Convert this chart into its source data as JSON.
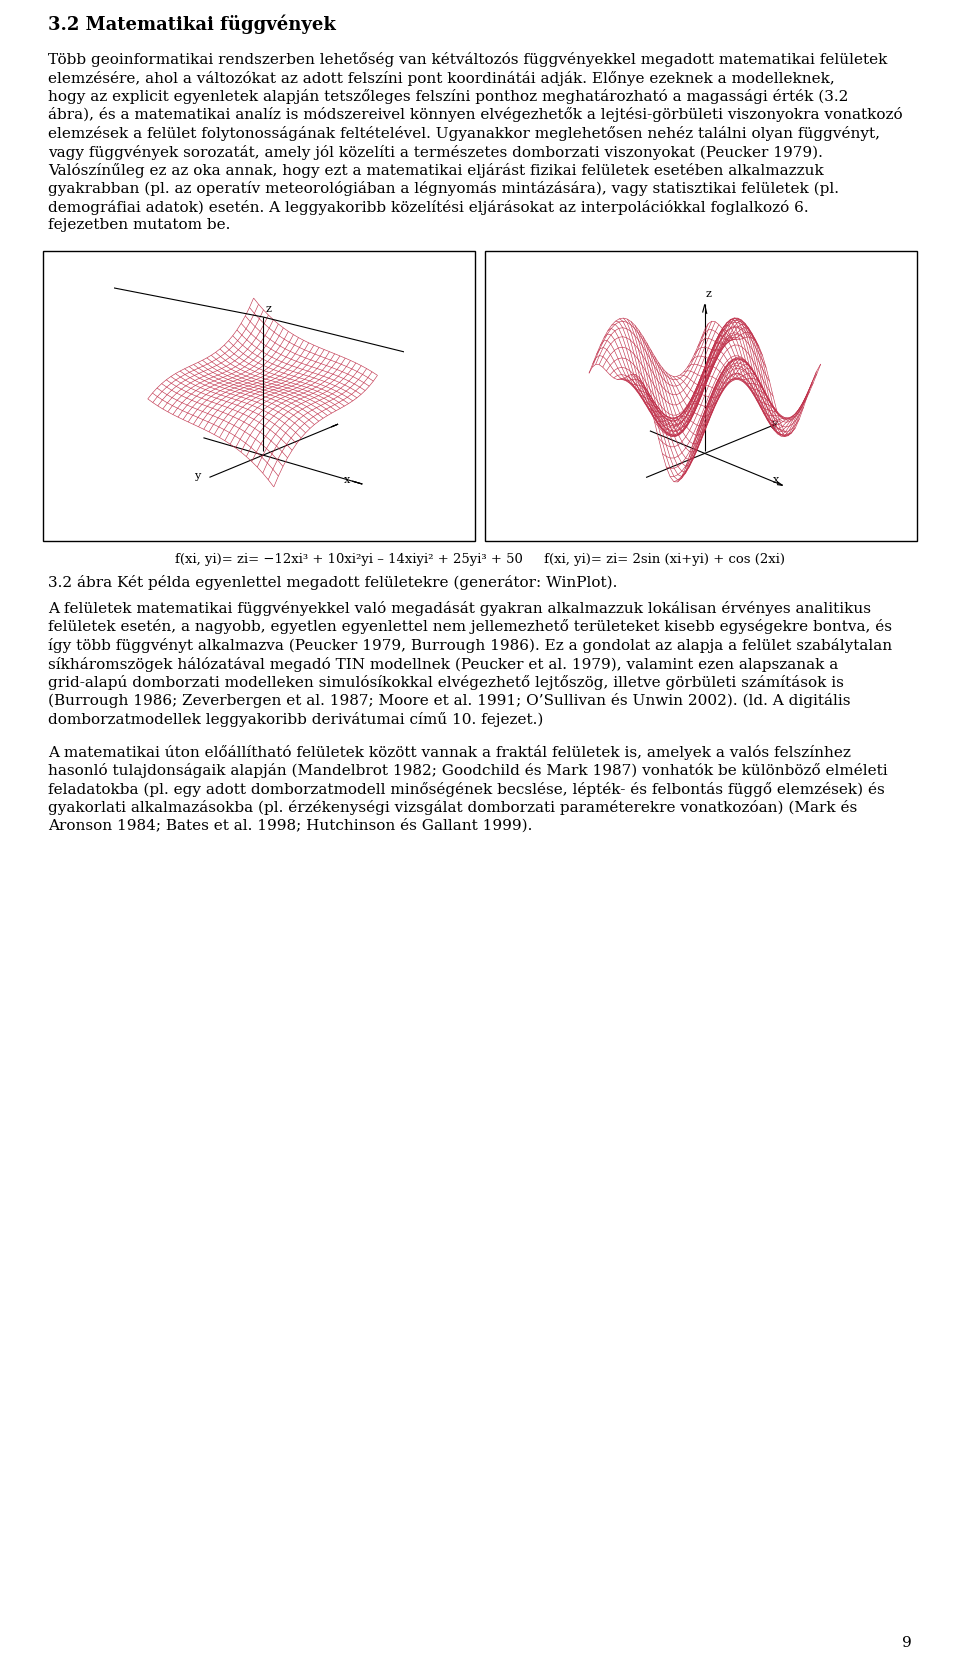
{
  "title": "3.2 Matematikai függvények",
  "surface_color": "#c0304a",
  "background_color": "#ffffff",
  "text_color": "#000000",
  "font_size": 11,
  "title_font_size": 13,
  "page_number": "9",
  "para1_lines": [
    "Több geoinformatikai rendszerben lehetőség van kétváltozós függvényekkel megadott matematikai felületek",
    "elemzésére, ahol a változókat az adott felszíni pont koordinátái adják. Előnye ezeknek a modelleknek,",
    "hogy az explicit egyenletek alapján tetszőleges felszíni ponthoz meghatározható a magassági érték (3.2",
    "ábra), és a matematikai analíz is módszereivel könnyen elvégezhetők a lejtési-görbületi viszonyokra vonatkozó",
    "elemzések a felület folytonosságának feltételével. Ugyanakkor meglehetősen nehéz találni olyan függvényt,",
    "vagy függvények sorozatát, amely jól közelíti a természetes domborzati viszonyokat (Peucker 1979).",
    "Valószínűleg ez az oka annak, hogy ezt a matematikai eljárást fizikai felületek esetében alkalmazzuk",
    "gyakrabban (pl. az operatív meteorológiában a légnyomás mintázására), vagy statisztikai felületek (pl.",
    "demográfiai adatok) esetén. A leggyakoribb közelítési eljárásokat az interpolációkkal foglalkozó 6.",
    "fejezetben mutatom be."
  ],
  "formula1": "f(xi, yi)= zi= −12xi³ + 10xi²yi – 14xiyi² + 25yi³ + 50",
  "formula2": "f(xi, yi)= zi= 2sin (xi+yi) + cos (2xi)",
  "caption": "3.2 ábra Két példa egyenlettel megadott felületekre (generátor: WinPlot).",
  "para2_lines": [
    "A felületek matematikai függvényekkel való megadását gyakran alkalmazzuk lokálisan érvényes analitikus",
    "felületek esetén, a nagyobb, egyetlen egyenlettel nem jellemezhető területeket kisebb egységekre bontva, és",
    "így több függvényt alkalmazva (Peucker 1979, Burrough 1986). Ez a gondolat az alapja a felület szabálytalan",
    "síkháromszögek hálózatával megadó TIN modellnek (Peucker et al. 1979), valamint ezen alapszanak a",
    "grid-alapú domborzati modelleken simulósíkokkal elvégezhető lejtőszög, illetve görbületi számítások is",
    "(Burrough 1986; Zeverbergen et al. 1987; Moore et al. 1991; O’Sullivan és Unwin 2002). (ld. A digitális",
    "domborzatmodellek leggyakoribb derivátumai című 10. fejezet.)"
  ],
  "para3_lines": [
    "A matematikai úton előállítható felületek között vannak a fraktál felületek is, amelyek a valós felszínhez",
    "hasonló tulajdonságaik alapján (Mandelbrot 1982; Goodchild és Mark 1987) vonhatók be különböző elméleti",
    "feladatokba (pl. egy adott domborzatmodell minőségének becslése, lépték- és felbontás függő elemzések) és",
    "gyakorlati alkalmazásokba (pl. érzékenységi vizsgálat domborzati paraméterekre vonatkozóan) (Mark és",
    "Aronson 1984; Bates et al. 1998; Hutchinson és Gallant 1999)."
  ]
}
